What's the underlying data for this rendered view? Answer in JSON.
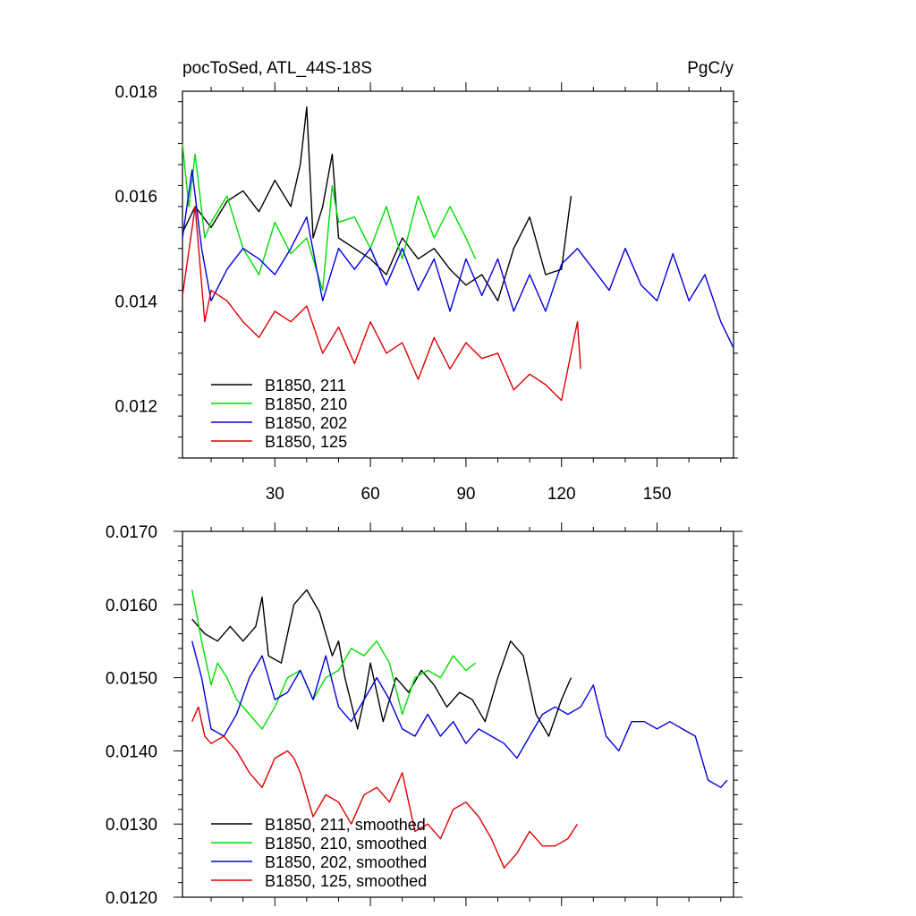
{
  "chart_data": [
    {
      "type": "line",
      "title_left": "pocToSed, ATL_44S-18S",
      "title_right": "PgC/y",
      "xlabel": "",
      "ylabel": "",
      "xlim": [
        1,
        174
      ],
      "ylim": [
        0.011,
        0.018
      ],
      "x_ticks": [
        30,
        60,
        90,
        120,
        150
      ],
      "x_tick_labels": [
        "30",
        "60",
        "90",
        "120",
        "150"
      ],
      "y_ticks": [
        0.012,
        0.014,
        0.016,
        0.018
      ],
      "y_tick_labels": [
        "0.012",
        "0.014",
        "0.016",
        "0.018"
      ],
      "legend_position": "bottom-left",
      "series": [
        {
          "name": "B1850, 211",
          "color": "#000000",
          "x": [
            1,
            5,
            10,
            15,
            20,
            25,
            30,
            35,
            38,
            40,
            42,
            45,
            48,
            50,
            55,
            60,
            65,
            70,
            75,
            80,
            85,
            90,
            95,
            100,
            105,
            110,
            115,
            120,
            123
          ],
          "y": [
            0.0153,
            0.0158,
            0.0154,
            0.0159,
            0.0161,
            0.0157,
            0.0163,
            0.0158,
            0.0166,
            0.0177,
            0.0152,
            0.0158,
            0.0168,
            0.0152,
            0.015,
            0.0148,
            0.0145,
            0.0152,
            0.0148,
            0.015,
            0.0146,
            0.0143,
            0.0145,
            0.014,
            0.015,
            0.0156,
            0.0145,
            0.0146,
            0.016
          ]
        },
        {
          "name": "B1850, 210",
          "color": "#00dd00",
          "x": [
            1,
            3,
            5,
            8,
            10,
            15,
            20,
            25,
            30,
            35,
            40,
            45,
            48,
            50,
            55,
            60,
            65,
            70,
            75,
            80,
            85,
            90,
            93
          ],
          "y": [
            0.017,
            0.0158,
            0.0168,
            0.0152,
            0.0155,
            0.016,
            0.015,
            0.0145,
            0.0155,
            0.0149,
            0.0152,
            0.0142,
            0.0162,
            0.0155,
            0.0156,
            0.015,
            0.0158,
            0.0148,
            0.016,
            0.0152,
            0.0158,
            0.0152,
            0.0148
          ]
        },
        {
          "name": "B1850, 202",
          "color": "#0000dd",
          "x": [
            1,
            4,
            7,
            10,
            15,
            20,
            25,
            30,
            35,
            40,
            45,
            50,
            55,
            60,
            65,
            70,
            75,
            80,
            85,
            90,
            95,
            100,
            105,
            110,
            115,
            120,
            125,
            130,
            135,
            140,
            145,
            150,
            155,
            160,
            165,
            170,
            174
          ],
          "y": [
            0.0152,
            0.0165,
            0.015,
            0.014,
            0.0146,
            0.015,
            0.0148,
            0.0145,
            0.015,
            0.0156,
            0.014,
            0.015,
            0.0146,
            0.015,
            0.0143,
            0.015,
            0.0142,
            0.0148,
            0.0138,
            0.0148,
            0.0141,
            0.0148,
            0.0138,
            0.0145,
            0.0138,
            0.0147,
            0.015,
            0.0146,
            0.0142,
            0.015,
            0.0143,
            0.014,
            0.0149,
            0.014,
            0.0145,
            0.0136,
            0.0131
          ]
        },
        {
          "name": "B1850, 125",
          "color": "#dd0000",
          "x": [
            1,
            5,
            8,
            10,
            15,
            20,
            25,
            30,
            35,
            40,
            45,
            50,
            55,
            60,
            65,
            70,
            75,
            80,
            85,
            90,
            95,
            100,
            105,
            110,
            115,
            120,
            125,
            126
          ],
          "y": [
            0.0141,
            0.0158,
            0.0136,
            0.0142,
            0.014,
            0.0136,
            0.0133,
            0.0138,
            0.0136,
            0.0139,
            0.013,
            0.0135,
            0.0128,
            0.0136,
            0.013,
            0.0132,
            0.0125,
            0.0133,
            0.0127,
            0.0132,
            0.0129,
            0.013,
            0.0123,
            0.0126,
            0.0124,
            0.0121,
            0.0136,
            0.0127
          ]
        }
      ]
    },
    {
      "type": "line",
      "xlim": [
        1,
        174
      ],
      "ylim": [
        0.012,
        0.017
      ],
      "x_ticks": [
        30,
        60,
        90,
        120,
        150
      ],
      "y_ticks": [
        0.012,
        0.013,
        0.014,
        0.015,
        0.016,
        0.017
      ],
      "y_tick_labels": [
        "0.0120",
        "0.0130",
        "0.0140",
        "0.0150",
        "0.0160",
        "0.0170"
      ],
      "legend_position": "bottom-left",
      "series": [
        {
          "name": "B1850, 211, smoothed",
          "color": "#000000",
          "x": [
            4,
            8,
            12,
            16,
            20,
            24,
            26,
            28,
            32,
            36,
            38,
            40,
            44,
            48,
            50,
            52,
            56,
            58,
            60,
            64,
            68,
            72,
            76,
            80,
            84,
            88,
            92,
            96,
            100,
            104,
            108,
            112,
            116,
            120,
            123
          ],
          "y": [
            0.0158,
            0.0156,
            0.0155,
            0.0157,
            0.0155,
            0.0157,
            0.0161,
            0.0153,
            0.0152,
            0.016,
            0.0161,
            0.0162,
            0.0159,
            0.0153,
            0.0155,
            0.015,
            0.0143,
            0.0147,
            0.0152,
            0.0144,
            0.015,
            0.0148,
            0.0151,
            0.0149,
            0.0146,
            0.0148,
            0.0147,
            0.0144,
            0.015,
            0.0155,
            0.0153,
            0.0145,
            0.0142,
            0.0147,
            0.015
          ]
        },
        {
          "name": "B1850, 210, smoothed",
          "color": "#00dd00",
          "x": [
            4,
            7,
            10,
            12,
            15,
            18,
            22,
            26,
            30,
            34,
            38,
            42,
            46,
            50,
            54,
            58,
            62,
            66,
            70,
            74,
            78,
            82,
            86,
            90,
            93
          ],
          "y": [
            0.0162,
            0.0155,
            0.0149,
            0.0152,
            0.015,
            0.0147,
            0.0145,
            0.0143,
            0.0146,
            0.015,
            0.0151,
            0.0147,
            0.015,
            0.0151,
            0.0154,
            0.0153,
            0.0155,
            0.0152,
            0.0145,
            0.015,
            0.0151,
            0.015,
            0.0153,
            0.0151,
            0.0152
          ]
        },
        {
          "name": "B1850, 202, smoothed",
          "color": "#0000dd",
          "x": [
            4,
            7,
            10,
            14,
            18,
            22,
            26,
            30,
            34,
            38,
            42,
            46,
            50,
            54,
            58,
            62,
            66,
            70,
            74,
            78,
            82,
            86,
            90,
            94,
            98,
            102,
            106,
            110,
            114,
            118,
            122,
            126,
            130,
            134,
            138,
            142,
            146,
            150,
            154,
            158,
            162,
            166,
            170,
            172
          ],
          "y": [
            0.0155,
            0.015,
            0.0143,
            0.0142,
            0.0145,
            0.015,
            0.0153,
            0.0147,
            0.0148,
            0.0151,
            0.0147,
            0.0153,
            0.0146,
            0.0144,
            0.0147,
            0.015,
            0.0147,
            0.0143,
            0.0142,
            0.0145,
            0.0142,
            0.0144,
            0.0141,
            0.0143,
            0.0142,
            0.0141,
            0.0139,
            0.0142,
            0.0145,
            0.0146,
            0.0145,
            0.0146,
            0.0149,
            0.0142,
            0.014,
            0.0144,
            0.0144,
            0.0143,
            0.0144,
            0.0143,
            0.0142,
            0.0136,
            0.0135,
            0.0136
          ]
        },
        {
          "name": "B1850, 125, smoothed",
          "color": "#dd0000",
          "x": [
            4,
            6,
            8,
            10,
            14,
            18,
            22,
            26,
            30,
            34,
            36,
            38,
            42,
            46,
            50,
            54,
            58,
            62,
            66,
            70,
            74,
            78,
            82,
            86,
            90,
            94,
            98,
            102,
            106,
            110,
            114,
            118,
            122,
            125
          ],
          "y": [
            0.0144,
            0.0146,
            0.0142,
            0.0141,
            0.0142,
            0.014,
            0.0137,
            0.0135,
            0.0139,
            0.014,
            0.0139,
            0.0137,
            0.0131,
            0.0134,
            0.0133,
            0.013,
            0.0134,
            0.0135,
            0.0133,
            0.0137,
            0.0129,
            0.013,
            0.0128,
            0.0132,
            0.0133,
            0.0131,
            0.0128,
            0.0124,
            0.0126,
            0.0129,
            0.0127,
            0.0127,
            0.0128,
            0.013
          ]
        }
      ]
    }
  ]
}
